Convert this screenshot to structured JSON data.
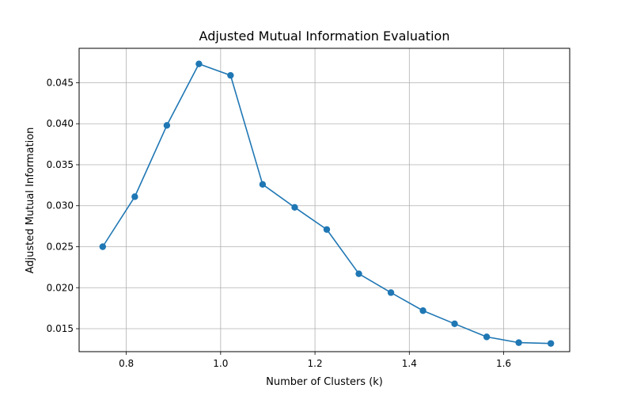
{
  "chart_data": {
    "type": "line",
    "title": "Adjusted Mutual Information Evaluation",
    "xlabel": "Number of Clusters (k)",
    "ylabel": "Adjusted Mutual Information",
    "xlim": [
      0.7,
      1.74
    ],
    "ylim": [
      0.0122,
      0.0492
    ],
    "xticks": [
      {
        "value": 0.8,
        "label": "0.8"
      },
      {
        "value": 1.0,
        "label": "1.0"
      },
      {
        "value": 1.2,
        "label": "1.2"
      },
      {
        "value": 1.4,
        "label": "1.4"
      },
      {
        "value": 1.6,
        "label": "1.6"
      }
    ],
    "yticks": [
      {
        "value": 0.015,
        "label": "0.015"
      },
      {
        "value": 0.02,
        "label": "0.020"
      },
      {
        "value": 0.025,
        "label": "0.025"
      },
      {
        "value": 0.03,
        "label": "0.030"
      },
      {
        "value": 0.035,
        "label": "0.035"
      },
      {
        "value": 0.04,
        "label": "0.040"
      },
      {
        "value": 0.045,
        "label": "0.045"
      }
    ],
    "grid": true,
    "line_color": "#1f77b4",
    "series": [
      {
        "x": [
          0.75,
          0.818,
          0.886,
          0.954,
          1.021,
          1.089,
          1.157,
          1.225,
          1.293,
          1.361,
          1.429,
          1.496,
          1.564,
          1.632,
          1.7
        ],
        "y": [
          0.025,
          0.0311,
          0.0398,
          0.0473,
          0.0459,
          0.0326,
          0.0298,
          0.0271,
          0.0217,
          0.0194,
          0.0172,
          0.0156,
          0.014,
          0.0133,
          0.0132
        ]
      }
    ]
  }
}
